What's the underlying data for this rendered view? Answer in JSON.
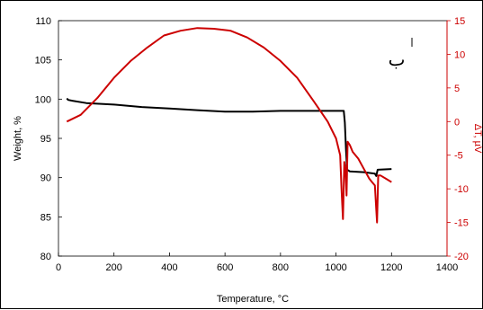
{
  "chart_data": {
    "type": "line",
    "title": "",
    "xlabel": "Temperature, °C",
    "ylabel": "Weight, %",
    "y2label": "ΔT, µV",
    "xlim": [
      0,
      1400
    ],
    "ylim": [
      80,
      110
    ],
    "y2lim": [
      -20,
      15
    ],
    "grid": false,
    "legend": "none",
    "x_ticks": [
      "0",
      "200",
      "400",
      "600",
      "800",
      "1000",
      "1200",
      "1400"
    ],
    "y_ticks": [
      "80",
      "85",
      "90",
      "95",
      "100",
      "105",
      "110"
    ],
    "y2_ticks": [
      "-20",
      "-15",
      "-10",
      "-5",
      "0",
      "5",
      "10",
      "15"
    ],
    "annotations": [
      "ب"
    ],
    "series": [
      {
        "axis": "left",
        "color": "#000000",
        "points": [
          [
            30,
            100.1
          ],
          [
            35,
            99.9
          ],
          [
            50,
            99.8
          ],
          [
            100,
            99.5
          ],
          [
            200,
            99.3
          ],
          [
            300,
            99.0
          ],
          [
            400,
            98.8
          ],
          [
            500,
            98.6
          ],
          [
            600,
            98.4
          ],
          [
            700,
            98.4
          ],
          [
            800,
            98.5
          ],
          [
            900,
            98.5
          ],
          [
            1000,
            98.5
          ],
          [
            1028,
            98.5
          ],
          [
            1032,
            97.0
          ],
          [
            1036,
            93.5
          ],
          [
            1040,
            91.0
          ],
          [
            1050,
            90.8
          ],
          [
            1100,
            90.7
          ],
          [
            1140,
            90.5
          ],
          [
            1145,
            90.2
          ],
          [
            1150,
            91.0
          ],
          [
            1200,
            91.1
          ]
        ]
      },
      {
        "axis": "right",
        "color": "#cc0000",
        "points": [
          [
            30,
            0
          ],
          [
            80,
            1
          ],
          [
            140,
            3.5
          ],
          [
            200,
            6.5
          ],
          [
            260,
            9
          ],
          [
            320,
            11
          ],
          [
            380,
            12.8
          ],
          [
            440,
            13.5
          ],
          [
            500,
            13.9
          ],
          [
            560,
            13.8
          ],
          [
            620,
            13.5
          ],
          [
            680,
            12.5
          ],
          [
            740,
            11
          ],
          [
            800,
            9
          ],
          [
            860,
            6.5
          ],
          [
            920,
            3
          ],
          [
            970,
            0
          ],
          [
            1000,
            -2.5
          ],
          [
            1015,
            -5
          ],
          [
            1020,
            -10
          ],
          [
            1025,
            -14.5
          ],
          [
            1030,
            -6
          ],
          [
            1034,
            -7
          ],
          [
            1038,
            -11
          ],
          [
            1042,
            -3
          ],
          [
            1050,
            -3.5
          ],
          [
            1060,
            -4.5
          ],
          [
            1080,
            -5.5
          ],
          [
            1100,
            -7
          ],
          [
            1120,
            -8.5
          ],
          [
            1130,
            -9
          ],
          [
            1140,
            -9.5
          ],
          [
            1145,
            -13
          ],
          [
            1148,
            -15
          ],
          [
            1152,
            -8
          ],
          [
            1160,
            -8
          ],
          [
            1180,
            -8.5
          ],
          [
            1200,
            -9
          ]
        ]
      }
    ]
  }
}
